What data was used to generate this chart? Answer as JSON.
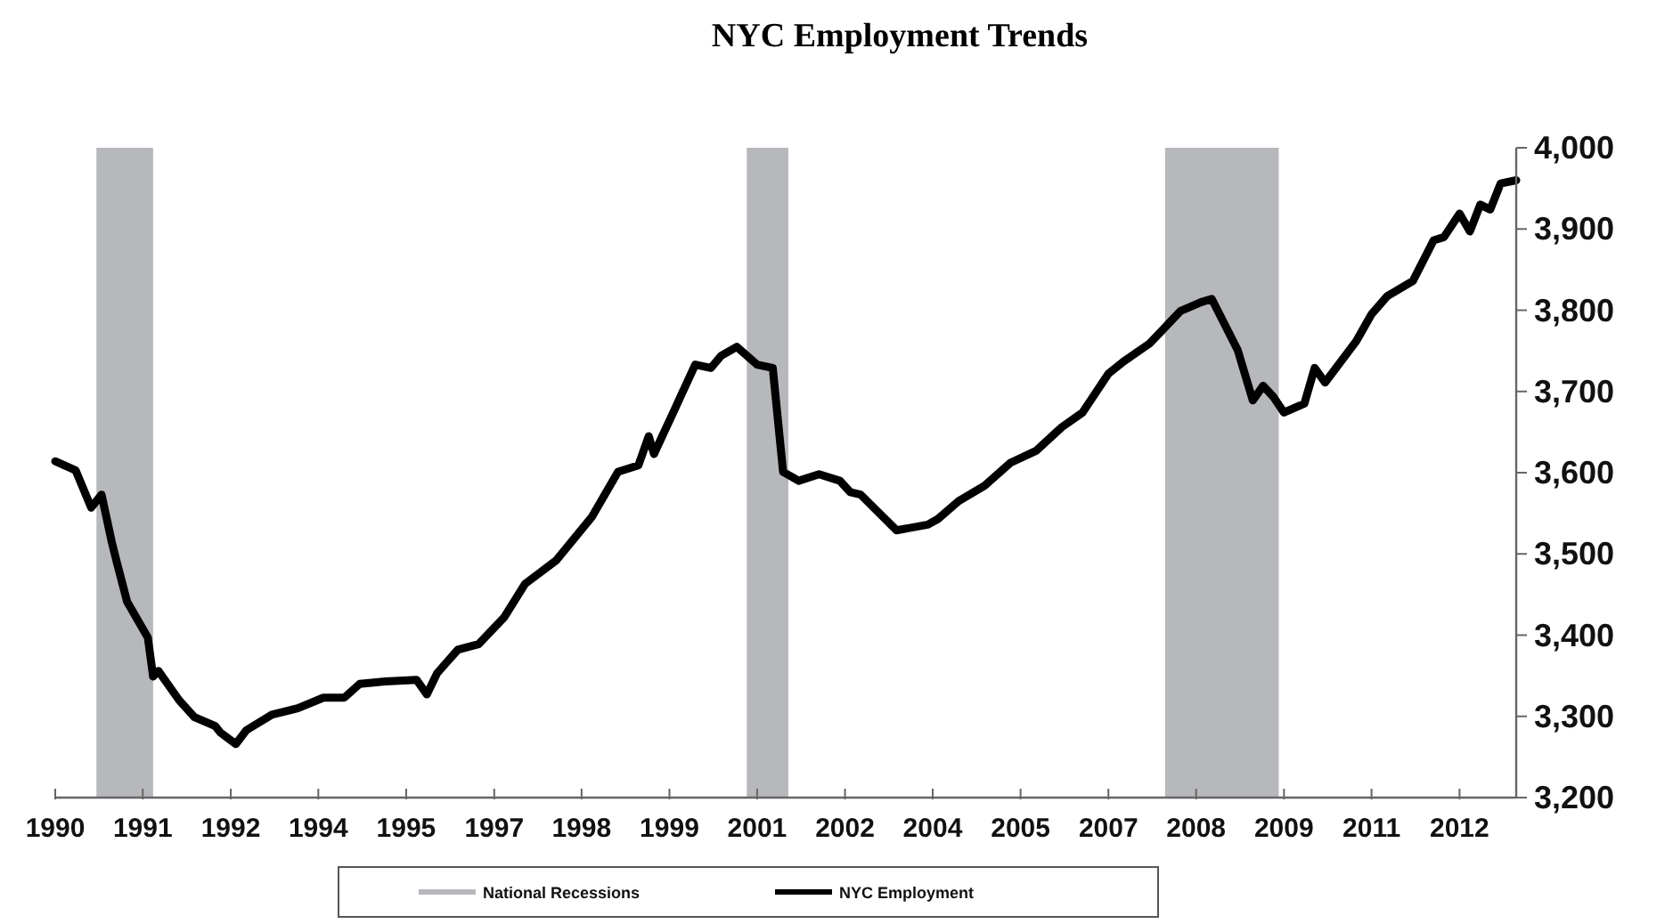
{
  "chart_data": {
    "type": "line",
    "title": "NYC Employment Trends",
    "x": [
      "1990-01",
      "1990-05",
      "1990-08",
      "1990-10",
      "1990-12",
      "1991-01",
      "1991-03",
      "1991-07",
      "1991-08",
      "1991-09",
      "1992-01",
      "1992-04",
      "1992-08",
      "1992-09",
      "1992-12",
      "1993-02",
      "1993-07",
      "1993-12",
      "1994-05",
      "1994-09",
      "1994-12",
      "1995-05",
      "1995-11",
      "1996-01",
      "1996-03",
      "1996-07",
      "1996-11",
      "1997-04",
      "1997-08",
      "1998-02",
      "1998-09",
      "1999-02",
      "1999-06",
      "1999-08",
      "1999-09",
      "2000-01",
      "2000-05",
      "2000-08",
      "2000-10",
      "2001-01",
      "2001-05",
      "2001-08",
      "2001-10",
      "2002-01",
      "2002-05",
      "2002-09",
      "2002-11",
      "2003-01",
      "2003-08",
      "2004-02",
      "2004-04",
      "2004-08",
      "2005-01",
      "2005-06",
      "2005-11",
      "2006-04",
      "2006-08",
      "2007-01",
      "2007-04",
      "2007-09",
      "2008-03",
      "2008-07",
      "2008-09",
      "2009-02",
      "2009-05",
      "2009-07",
      "2009-09",
      "2009-11",
      "2010-03",
      "2010-05",
      "2010-07",
      "2011-01",
      "2011-04",
      "2011-07",
      "2011-12",
      "2012-04",
      "2012-06",
      "2012-09",
      "2012-11",
      "2013-01",
      "2013-03",
      "2013-05",
      "2013-08"
    ],
    "series": [
      {
        "name": "NYC Employment",
        "color": "#000000",
        "values": [
          3614,
          3603,
          3557,
          3573,
          3514,
          3488,
          3441,
          3397,
          3349,
          3356,
          3320,
          3299,
          3288,
          3280,
          3266,
          3283,
          3302,
          3310,
          3323,
          3323,
          3340,
          3343,
          3345,
          3327,
          3353,
          3382,
          3389,
          3422,
          3463,
          3492,
          3546,
          3601,
          3609,
          3645,
          3623,
          3678,
          3733,
          3729,
          3744,
          3755,
          3733,
          3729,
          3601,
          3590,
          3598,
          3590,
          3576,
          3573,
          3529,
          3536,
          3543,
          3565,
          3584,
          3612,
          3627,
          3656,
          3674,
          3722,
          3737,
          3759,
          3799,
          3810,
          3814,
          3751,
          3689,
          3707,
          3693,
          3674,
          3685,
          3729,
          3711,
          3762,
          3795,
          3817,
          3836,
          3886,
          3890,
          3919,
          3897,
          3930,
          3924,
          3956,
          3960
        ]
      }
    ],
    "bands": [
      {
        "axis": "x",
        "from": "1990-09",
        "to": "1991-08",
        "label": "National Recessions",
        "color": "#b7b8bc"
      },
      {
        "axis": "x",
        "from": "2001-03",
        "to": "2001-11",
        "color": "#b7b8bc"
      },
      {
        "axis": "x",
        "from": "2007-12",
        "to": "2009-10",
        "color": "#b7b8bc"
      }
    ],
    "xlim": [
      "1990-01",
      "2013-08"
    ],
    "xticks": [
      {
        "value": "1990-01",
        "label": "1990"
      },
      {
        "value": "1991-06",
        "label": "1991"
      },
      {
        "value": "1992-11",
        "label": "1992"
      },
      {
        "value": "1994-04",
        "label": "1994"
      },
      {
        "value": "1995-09",
        "label": "1995"
      },
      {
        "value": "1997-02",
        "label": "1997"
      },
      {
        "value": "1998-07",
        "label": "1998"
      },
      {
        "value": "1999-12",
        "label": "1999"
      },
      {
        "value": "2001-05",
        "label": "2001"
      },
      {
        "value": "2002-10",
        "label": "2002"
      },
      {
        "value": "2004-03",
        "label": "2004"
      },
      {
        "value": "2005-08",
        "label": "2005"
      },
      {
        "value": "2007-01",
        "label": "2007"
      },
      {
        "value": "2008-06",
        "label": "2008"
      },
      {
        "value": "2009-11",
        "label": "2009"
      },
      {
        "value": "2011-04",
        "label": "2011"
      },
      {
        "value": "2012-09",
        "label": "2012"
      }
    ],
    "ylim": [
      3200,
      4000
    ],
    "yticks": [
      {
        "value": 3200,
        "label": "3,200"
      },
      {
        "value": 3300,
        "label": "3,300"
      },
      {
        "value": 3400,
        "label": "3,400"
      },
      {
        "value": 3500,
        "label": "3,500"
      },
      {
        "value": 3600,
        "label": "3,600"
      },
      {
        "value": 3700,
        "label": "3,700"
      },
      {
        "value": 3800,
        "label": "3,800"
      },
      {
        "value": 3900,
        "label": "3,900"
      },
      {
        "value": 4000,
        "label": "4,000"
      }
    ],
    "grid": false,
    "legend": "bottom",
    "line_style": "solid"
  }
}
